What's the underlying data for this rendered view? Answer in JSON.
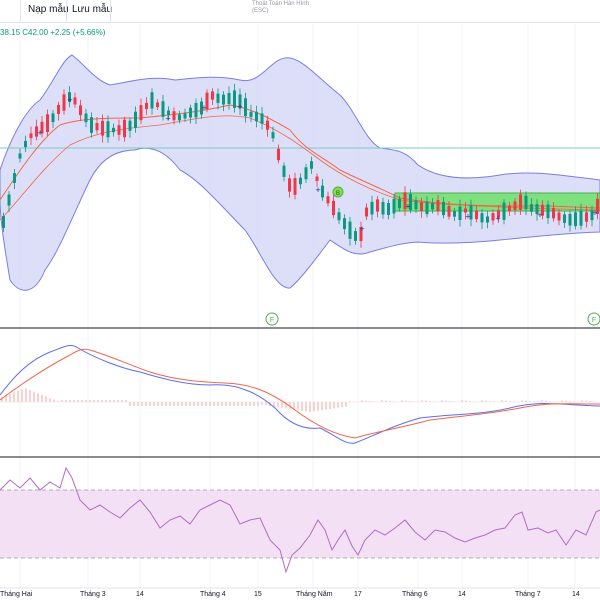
{
  "toolbar": {
    "template_label": "Nạp mẫu",
    "save_template_label": "Lưu mẫu",
    "cancel_tip_line1": "Thoát Toán Hàn Hình",
    "cancel_tip_line2": "(ESC)"
  },
  "legend": {
    "ohlc_text": "38.15  C42.00  +2.25 (+5.66%)"
  },
  "markers": {
    "earnings_label": "F",
    "dividend_label": "B"
  },
  "x_axis": {
    "labels": [
      "Tháng Hai",
      "Tháng 3",
      "14",
      "Tháng 4",
      "15",
      "Tháng Năm",
      "17",
      "Tháng 6",
      "14",
      "Tháng 7",
      "14"
    ]
  },
  "colors": {
    "up": "#089981",
    "down": "#f23645",
    "band_fill": "#d1d4f5",
    "band_line": "#7b7fe0",
    "rsi_fill": "#f3e0f5",
    "rsi_line": "#b36bc4",
    "macd_line": "#5b6ef0",
    "signal_line": "#f0674a",
    "zone": "#7ee07e"
  }
}
